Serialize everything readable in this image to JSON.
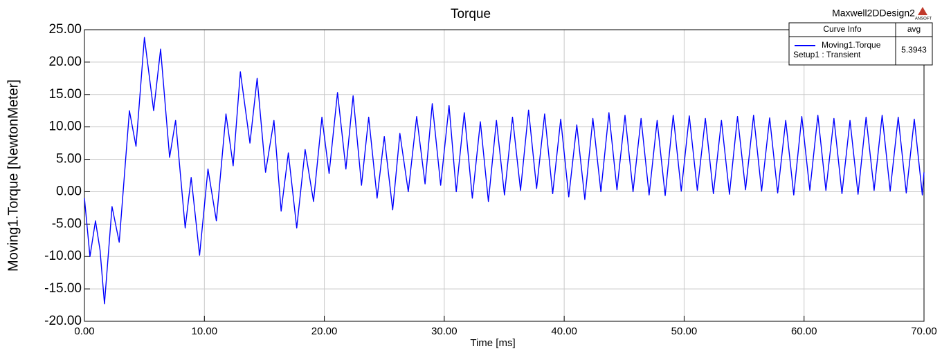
{
  "chart_data": {
    "type": "line",
    "title": "Torque",
    "header": "Maxwell2DDesign2",
    "logo": "ANSOFT",
    "xlabel": "Time [ms]",
    "ylabel": "Moving1.Torque [NewtonMeter]",
    "legend_columns": [
      "Curve Info",
      "avg"
    ],
    "x": [
      0,
      0.46,
      0.92,
      1.3,
      1.67,
      2.3,
      2.9,
      3.75,
      4.3,
      5.0,
      5.77,
      6.35,
      7.1,
      7.6,
      8.4,
      8.9,
      9.6,
      10.3,
      11.0,
      11.8,
      12.4,
      13.0,
      13.8,
      14.4,
      15.1,
      15.8,
      16.4,
      17.0,
      17.7,
      18.4,
      19.1,
      19.8,
      20.4,
      21.1,
      21.8,
      22.4,
      23.1,
      23.7,
      24.4,
      25.0,
      25.7,
      26.3,
      27.0,
      27.7,
      28.4,
      29.0,
      29.7,
      30.4,
      31.0,
      31.67,
      32.34,
      33.01,
      33.68,
      34.35,
      35.02,
      35.69,
      36.36,
      37.03,
      37.7,
      38.37,
      39.04,
      39.71,
      40.38,
      41.05,
      41.72,
      42.39,
      43.06,
      43.73,
      44.4,
      45.07,
      45.74,
      46.41,
      47.08,
      47.75,
      48.42,
      49.09,
      49.76,
      50.43,
      51.1,
      51.77,
      52.44,
      53.11,
      53.78,
      54.45,
      55.12,
      55.79,
      56.46,
      57.13,
      57.8,
      58.47,
      59.14,
      59.81,
      60.48,
      61.15,
      61.82,
      62.49,
      63.16,
      63.83,
      64.5,
      65.17,
      65.84,
      66.51,
      67.18,
      67.85,
      68.52,
      69.19,
      69.86,
      70.0
    ],
    "series": [
      {
        "name": "Moving1.Torque",
        "setup": "Setup1 : Transient",
        "avg": 5.3943,
        "color": "#0000ff",
        "values": [
          -1,
          -10,
          -4.5,
          -9,
          -17.3,
          -2.3,
          -7.8,
          12.5,
          7,
          23.8,
          12.5,
          22,
          5.3,
          11,
          -5.6,
          2.2,
          -9.8,
          3.5,
          -4.5,
          12,
          4,
          18.5,
          7.5,
          17.5,
          3,
          11,
          -3,
          6,
          -5.6,
          6.5,
          -1.5,
          11.5,
          2.8,
          15.3,
          3.5,
          14.8,
          1,
          11.5,
          -1,
          8.5,
          -2.8,
          9,
          0,
          11.6,
          1.2,
          13.6,
          1,
          13.3,
          0,
          12.2,
          -1.0,
          10.8,
          -1.5,
          11.0,
          -0.5,
          11.5,
          0.2,
          12.6,
          0.5,
          12.0,
          -0.3,
          11.2,
          -0.8,
          10.3,
          -1.2,
          11.3,
          0.0,
          12.2,
          0.3,
          11.8,
          0.0,
          11.3,
          -0.5,
          11.0,
          -0.6,
          11.8,
          0.1,
          11.7,
          0.2,
          11.3,
          -0.3,
          11.0,
          -0.4,
          11.6,
          0.3,
          11.8,
          0.1,
          11.4,
          -0.2,
          11.0,
          -0.5,
          11.6,
          0.2,
          11.8,
          0.2,
          11.3,
          -0.3,
          11.0,
          -0.4,
          11.5,
          0.2,
          11.8,
          0.1,
          11.5,
          -0.2,
          11.2,
          -0.5,
          3.0
        ]
      }
    ],
    "xlim": [
      0,
      70
    ],
    "xticks": [
      {
        "value": 0,
        "label": "0.00"
      },
      {
        "value": 10,
        "label": "10.00"
      },
      {
        "value": 20,
        "label": "20.00"
      },
      {
        "value": 30,
        "label": "30.00"
      },
      {
        "value": 40,
        "label": "40.00"
      },
      {
        "value": 50,
        "label": "50.00"
      },
      {
        "value": 60,
        "label": "60.00"
      },
      {
        "value": 70,
        "label": "70.00"
      }
    ],
    "ylim": [
      -20,
      25
    ],
    "yticks": [
      {
        "value": -20,
        "label": "-20.00"
      },
      {
        "value": -15,
        "label": "-15.00"
      },
      {
        "value": -10,
        "label": "-10.00"
      },
      {
        "value": -5,
        "label": "-5.00"
      },
      {
        "value": 0,
        "label": "0.00"
      },
      {
        "value": 5,
        "label": "5.00"
      },
      {
        "value": 10,
        "label": "10.00"
      },
      {
        "value": 15,
        "label": "15.00"
      },
      {
        "value": 20,
        "label": "20.00"
      },
      {
        "value": 25,
        "label": "25.00"
      }
    ],
    "grid": true
  }
}
